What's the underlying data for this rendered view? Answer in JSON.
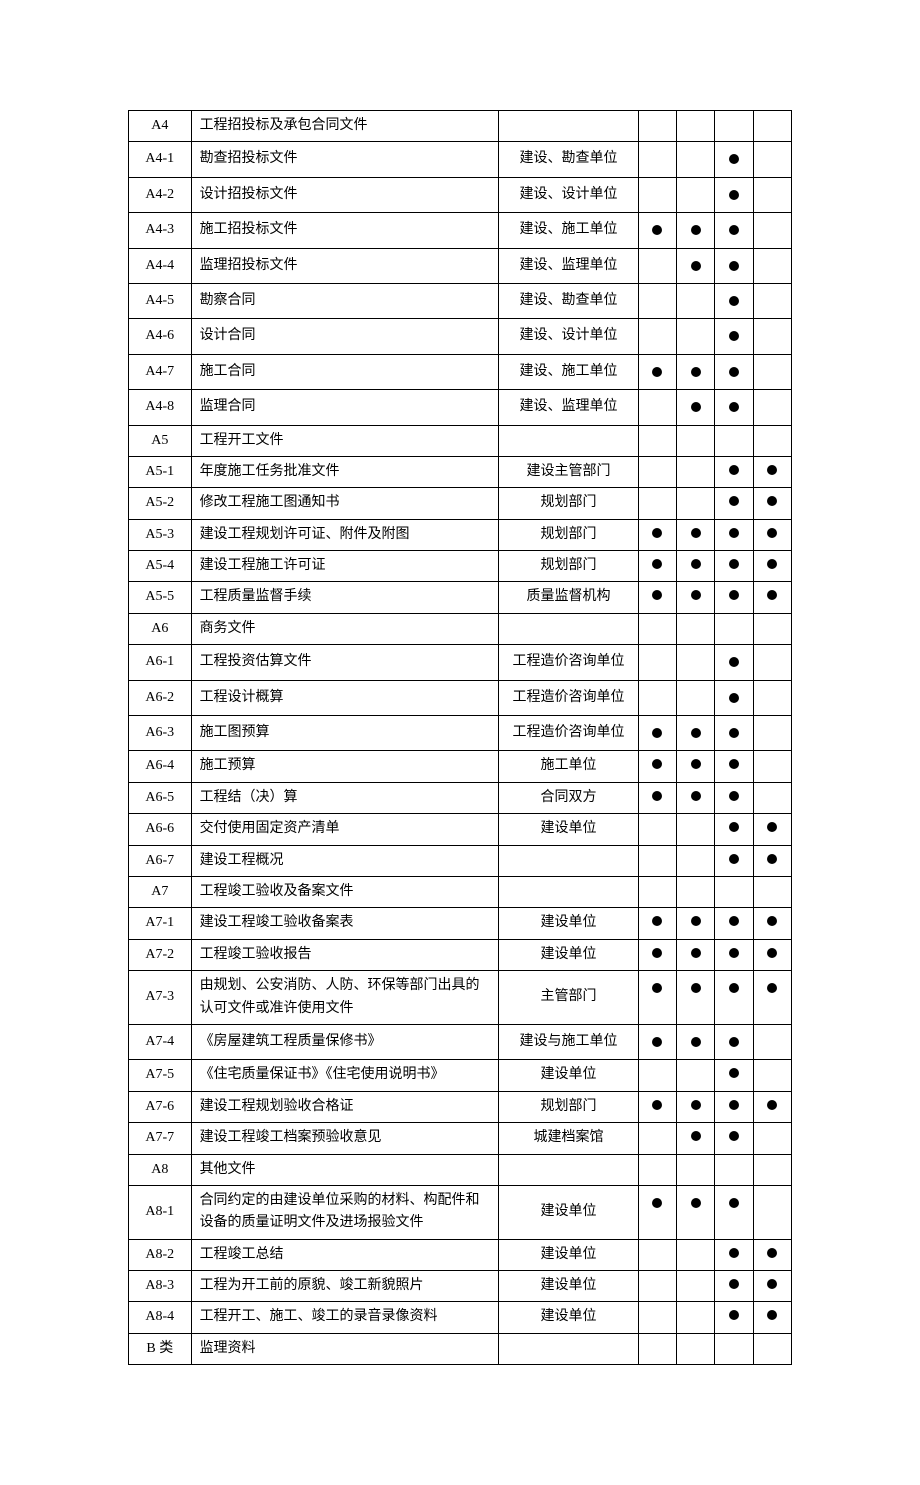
{
  "rows": [
    {
      "code": "A4",
      "name": "工程招投标及承包合同文件",
      "dept": "",
      "d1": false,
      "d2": false,
      "d3": false,
      "d4": false
    },
    {
      "code": "A4-1",
      "name": "勘查招投标文件",
      "dept": "建设、勘查单位",
      "d1": false,
      "d2": false,
      "d3": true,
      "d4": false
    },
    {
      "code": "A4-2",
      "name": "设计招投标文件",
      "dept": "建设、设计单位",
      "d1": false,
      "d2": false,
      "d3": true,
      "d4": false
    },
    {
      "code": "A4-3",
      "name": "施工招投标文件",
      "dept": "建设、施工单位",
      "d1": true,
      "d2": true,
      "d3": true,
      "d4": false
    },
    {
      "code": "A4-4",
      "name": "监理招投标文件",
      "dept": "建设、监理单位",
      "d1": false,
      "d2": true,
      "d3": true,
      "d4": false
    },
    {
      "code": "A4-5",
      "name": "勘察合同",
      "dept": "建设、勘查单位",
      "d1": false,
      "d2": false,
      "d3": true,
      "d4": false
    },
    {
      "code": "A4-6",
      "name": "设计合同",
      "dept": "建设、设计单位",
      "d1": false,
      "d2": false,
      "d3": true,
      "d4": false
    },
    {
      "code": "A4-7",
      "name": "施工合同",
      "dept": "建设、施工单位",
      "d1": true,
      "d2": true,
      "d3": true,
      "d4": false
    },
    {
      "code": "A4-8",
      "name": "监理合同",
      "dept": "建设、监理单位",
      "d1": false,
      "d2": true,
      "d3": true,
      "d4": false
    },
    {
      "code": "A5",
      "name": "工程开工文件",
      "dept": "",
      "d1": false,
      "d2": false,
      "d3": false,
      "d4": false
    },
    {
      "code": "A5-1",
      "name": "年度施工任务批准文件",
      "dept": "建设主管部门",
      "d1": false,
      "d2": false,
      "d3": true,
      "d4": true
    },
    {
      "code": "A5-2",
      "name": "修改工程施工图通知书",
      "dept": "规划部门",
      "d1": false,
      "d2": false,
      "d3": true,
      "d4": true
    },
    {
      "code": "A5-3",
      "name": "建设工程规划许可证、附件及附图",
      "dept": "规划部门",
      "d1": true,
      "d2": true,
      "d3": true,
      "d4": true
    },
    {
      "code": "A5-4",
      "name": "建设工程施工许可证",
      "dept": "规划部门",
      "d1": true,
      "d2": true,
      "d3": true,
      "d4": true
    },
    {
      "code": "A5-5",
      "name": "工程质量监督手续",
      "dept": "质量监督机构",
      "d1": true,
      "d2": true,
      "d3": true,
      "d4": true
    },
    {
      "code": "A6",
      "name": "商务文件",
      "dept": "",
      "d1": false,
      "d2": false,
      "d3": false,
      "d4": false
    },
    {
      "code": "A6-1",
      "name": "工程投资估算文件",
      "dept": "工程造价咨询单位",
      "d1": false,
      "d2": false,
      "d3": true,
      "d4": false
    },
    {
      "code": "A6-2",
      "name": "工程设计概算",
      "dept": "工程造价咨询单位",
      "d1": false,
      "d2": false,
      "d3": true,
      "d4": false
    },
    {
      "code": "A6-3",
      "name": "施工图预算",
      "dept": "工程造价咨询单位",
      "d1": true,
      "d2": true,
      "d3": true,
      "d4": false
    },
    {
      "code": "A6-4",
      "name": "施工预算",
      "dept": "施工单位",
      "d1": true,
      "d2": true,
      "d3": true,
      "d4": false
    },
    {
      "code": "A6-5",
      "name": "工程结（决）算",
      "dept": "合同双方",
      "d1": true,
      "d2": true,
      "d3": true,
      "d4": false
    },
    {
      "code": "A6-6",
      "name": "交付使用固定资产清单",
      "dept": "建设单位",
      "d1": false,
      "d2": false,
      "d3": true,
      "d4": true
    },
    {
      "code": "A6-7",
      "name": "建设工程概况",
      "dept": "",
      "d1": false,
      "d2": false,
      "d3": true,
      "d4": true
    },
    {
      "code": "A7",
      "name": "工程竣工验收及备案文件",
      "dept": "",
      "d1": false,
      "d2": false,
      "d3": false,
      "d4": false
    },
    {
      "code": "A7-1",
      "name": "建设工程竣工验收备案表",
      "dept": "建设单位",
      "d1": true,
      "d2": true,
      "d3": true,
      "d4": true
    },
    {
      "code": "A7-2",
      "name": "工程竣工验收报告",
      "dept": "建设单位",
      "d1": true,
      "d2": true,
      "d3": true,
      "d4": true
    },
    {
      "code": "A7-3",
      "name": "由规划、公安消防、人防、环保等部门出具的认可文件或准许使用文件",
      "dept": "主管部门",
      "d1": true,
      "d2": true,
      "d3": true,
      "d4": true
    },
    {
      "code": "A7-4",
      "name": "《房屋建筑工程质量保修书》",
      "dept": "建设与施工单位",
      "d1": true,
      "d2": true,
      "d3": true,
      "d4": false
    },
    {
      "code": "A7-5",
      "name": "《住宅质量保证书》《住宅使用说明书》",
      "dept": "建设单位",
      "d1": false,
      "d2": false,
      "d3": true,
      "d4": false
    },
    {
      "code": "A7-6",
      "name": "建设工程规划验收合格证",
      "dept": "规划部门",
      "d1": true,
      "d2": true,
      "d3": true,
      "d4": true
    },
    {
      "code": "A7-7",
      "name": "建设工程竣工档案预验收意见",
      "dept": "城建档案馆",
      "d1": false,
      "d2": true,
      "d3": true,
      "d4": false
    },
    {
      "code": "A8",
      "name": "其他文件",
      "dept": "",
      "d1": false,
      "d2": false,
      "d3": false,
      "d4": false
    },
    {
      "code": "A8-1",
      "name": "合同约定的由建设单位采购的材料、构配件和设备的质量证明文件及进场报验文件",
      "dept": "建设单位",
      "d1": true,
      "d2": true,
      "d3": true,
      "d4": false
    },
    {
      "code": "A8-2",
      "name": "工程竣工总结",
      "dept": "建设单位",
      "d1": false,
      "d2": false,
      "d3": true,
      "d4": true
    },
    {
      "code": "A8-3",
      "name": "工程为开工前的原貌、竣工新貌照片",
      "dept": "建设单位",
      "d1": false,
      "d2": false,
      "d3": true,
      "d4": true
    },
    {
      "code": "A8-4",
      "name": "工程开工、施工、竣工的录音录像资料",
      "dept": "建设单位",
      "d1": false,
      "d2": false,
      "d3": true,
      "d4": true
    },
    {
      "code": "B 类",
      "name": "监理资料",
      "dept": "",
      "d1": false,
      "d2": false,
      "d3": false,
      "d4": false
    }
  ]
}
